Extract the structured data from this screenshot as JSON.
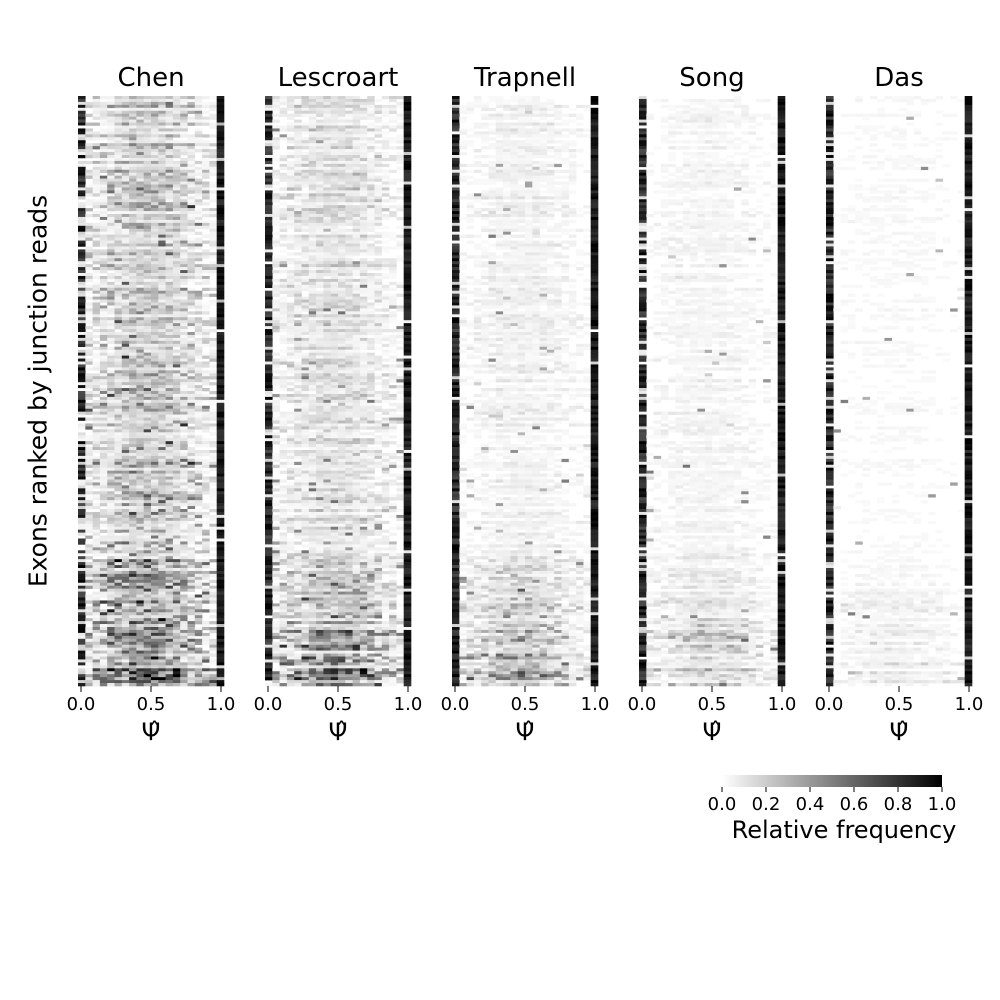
{
  "figure": {
    "ylabel": "Exons ranked by junction reads",
    "xlabel": "Ψ̂"
  },
  "chart_data": [
    {
      "type": "heatmap",
      "title": "Chen",
      "xlabel": "Ψ̂",
      "ylabel": "Exons ranked by junction reads",
      "xlim": [
        0.0,
        1.0
      ],
      "xticks": [
        "0.0",
        "0.5",
        "1.0"
      ],
      "bins": 20,
      "rows": 200,
      "description_values": {
        "edge_bins_dark": true,
        "mid_density": "moderate, dense bottom"
      }
    },
    {
      "type": "heatmap",
      "title": "Lescroart",
      "xlabel": "Ψ̂",
      "xlim": [
        0.0,
        1.0
      ],
      "xticks": [
        "0.0",
        "0.5",
        "1.0"
      ],
      "bins": 20,
      "rows": 200,
      "description_values": {
        "edge_bins_dark": true,
        "mid_density": "light, dense bottom"
      }
    },
    {
      "type": "heatmap",
      "title": "Trapnell",
      "xlabel": "Ψ̂",
      "xlim": [
        0.0,
        1.0
      ],
      "xticks": [
        "0.0",
        "0.5",
        "1.0"
      ],
      "bins": 20,
      "rows": 200,
      "description_values": {
        "edge_bins_dark": true,
        "mid_density": "sparse, dense bottom"
      }
    },
    {
      "type": "heatmap",
      "title": "Song",
      "xlabel": "Ψ̂",
      "xlim": [
        0.0,
        1.0
      ],
      "xticks": [
        "0.0",
        "0.5",
        "1.0"
      ],
      "bins": 20,
      "rows": 200,
      "description_values": {
        "edge_bins_dark": true,
        "mid_density": "sparse"
      }
    },
    {
      "type": "heatmap",
      "title": "Das",
      "xlabel": "Ψ̂",
      "xlim": [
        0.0,
        1.0
      ],
      "xticks": [
        "0.0",
        "0.5",
        "1.0"
      ],
      "bins": 20,
      "rows": 200,
      "description_values": {
        "edge_bins_dark": true,
        "mid_density": "very sparse"
      }
    }
  ],
  "colorbar": {
    "label": "Relative frequency",
    "ticks": [
      "0.0",
      "0.2",
      "0.4",
      "0.6",
      "0.8",
      "1.0"
    ],
    "range": [
      0.0,
      1.0
    ],
    "color_low": "#ffffff",
    "color_high": "#000000"
  }
}
